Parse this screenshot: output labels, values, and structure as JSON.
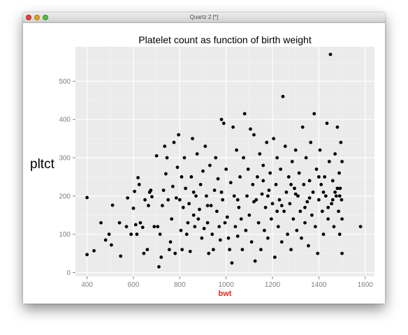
{
  "window": {
    "title": "Quartz 2 [*]"
  },
  "chart_data": {
    "type": "scatter",
    "title": "Platelet count as function of birth weight",
    "xlabel": "bwt",
    "ylabel": "pltct",
    "xlim": [
      350,
      1640
    ],
    "ylim": [
      -10,
      590
    ],
    "xticks": [
      400,
      600,
      800,
      1000,
      1200,
      1400,
      1600
    ],
    "yticks": [
      0,
      100,
      200,
      300,
      400,
      500
    ],
    "grid": true,
    "colors": {
      "panel": "#ebebeb",
      "grid": "#ffffff",
      "points": "#000000",
      "xlabel": "#e8271a"
    },
    "points": [
      [
        400,
        196
      ],
      [
        400,
        47
      ],
      [
        430,
        57
      ],
      [
        460,
        130
      ],
      [
        480,
        85
      ],
      [
        495,
        100
      ],
      [
        505,
        72
      ],
      [
        510,
        176
      ],
      [
        540,
        130
      ],
      [
        545,
        43
      ],
      [
        570,
        120
      ],
      [
        575,
        195
      ],
      [
        590,
        100
      ],
      [
        600,
        168
      ],
      [
        605,
        212
      ],
      [
        610,
        125
      ],
      [
        615,
        100
      ],
      [
        620,
        248
      ],
      [
        625,
        230
      ],
      [
        630,
        130
      ],
      [
        640,
        118
      ],
      [
        645,
        50
      ],
      [
        650,
        190
      ],
      [
        660,
        60
      ],
      [
        665,
        175
      ],
      [
        670,
        210
      ],
      [
        675,
        215
      ],
      [
        680,
        198
      ],
      [
        690,
        120
      ],
      [
        700,
        305
      ],
      [
        705,
        120
      ],
      [
        710,
        15
      ],
      [
        715,
        100
      ],
      [
        720,
        40
      ],
      [
        725,
        175
      ],
      [
        730,
        215
      ],
      [
        735,
        330
      ],
      [
        740,
        258
      ],
      [
        745,
        300
      ],
      [
        750,
        190
      ],
      [
        755,
        60
      ],
      [
        760,
        80
      ],
      [
        765,
        140
      ],
      [
        770,
        225
      ],
      [
        775,
        340
      ],
      [
        780,
        50
      ],
      [
        785,
        195
      ],
      [
        790,
        275
      ],
      [
        795,
        360
      ],
      [
        800,
        190
      ],
      [
        805,
        110
      ],
      [
        808,
        250
      ],
      [
        810,
        60
      ],
      [
        815,
        170
      ],
      [
        820,
        300
      ],
      [
        825,
        220
      ],
      [
        830,
        100
      ],
      [
        835,
        130
      ],
      [
        840,
        180
      ],
      [
        845,
        55
      ],
      [
        850,
        250
      ],
      [
        855,
        350
      ],
      [
        860,
        150
      ],
      [
        865,
        120
      ],
      [
        870,
        200
      ],
      [
        875,
        310
      ],
      [
        880,
        140
      ],
      [
        885,
        165
      ],
      [
        890,
        230
      ],
      [
        895,
        90
      ],
      [
        900,
        265
      ],
      [
        905,
        115
      ],
      [
        910,
        330
      ],
      [
        915,
        200
      ],
      [
        920,
        130
      ],
      [
        925,
        50
      ],
      [
        930,
        280
      ],
      [
        935,
        175
      ],
      [
        940,
        100
      ],
      [
        945,
        60
      ],
      [
        950,
        215
      ],
      [
        955,
        300
      ],
      [
        960,
        160
      ],
      [
        965,
        245
      ],
      [
        970,
        120
      ],
      [
        975,
        85
      ],
      [
        980,
        400
      ],
      [
        985,
        190
      ],
      [
        990,
        390
      ],
      [
        995,
        130
      ],
      [
        1000,
        270
      ],
      [
        1005,
        145
      ],
      [
        1010,
        90
      ],
      [
        1015,
        60
      ],
      [
        1020,
        235
      ],
      [
        1025,
        25
      ],
      [
        1030,
        380
      ],
      [
        1035,
        200
      ],
      [
        1040,
        120
      ],
      [
        1045,
        320
      ],
      [
        1050,
        95
      ],
      [
        1055,
        170
      ],
      [
        1060,
        250
      ],
      [
        1065,
        140
      ],
      [
        1070,
        60
      ],
      [
        1075,
        300
      ],
      [
        1080,
        415
      ],
      [
        1085,
        110
      ],
      [
        1090,
        200
      ],
      [
        1095,
        270
      ],
      [
        1100,
        150
      ],
      [
        1105,
        375
      ],
      [
        1110,
        80
      ],
      [
        1115,
        230
      ],
      [
        1120,
        360
      ],
      [
        1125,
        30
      ],
      [
        1130,
        190
      ],
      [
        1135,
        250
      ],
      [
        1140,
        130
      ],
      [
        1145,
        310
      ],
      [
        1150,
        60
      ],
      [
        1155,
        205
      ],
      [
        1160,
        280
      ],
      [
        1165,
        110
      ],
      [
        1170,
        170
      ],
      [
        1175,
        340
      ],
      [
        1180,
        90
      ],
      [
        1185,
        215
      ],
      [
        1190,
        260
      ],
      [
        1195,
        140
      ],
      [
        1200,
        180
      ],
      [
        1205,
        350
      ],
      [
        1210,
        40
      ],
      [
        1215,
        230
      ],
      [
        1220,
        300
      ],
      [
        1225,
        120
      ],
      [
        1230,
        190
      ],
      [
        1235,
        270
      ],
      [
        1240,
        80
      ],
      [
        1245,
        460
      ],
      [
        1250,
        160
      ],
      [
        1255,
        330
      ],
      [
        1260,
        210
      ],
      [
        1265,
        100
      ],
      [
        1270,
        250
      ],
      [
        1275,
        180
      ],
      [
        1280,
        60
      ],
      [
        1285,
        290
      ],
      [
        1290,
        140
      ],
      [
        1295,
        220
      ],
      [
        1300,
        320
      ],
      [
        1305,
        110
      ],
      [
        1310,
        200
      ],
      [
        1315,
        260
      ],
      [
        1320,
        160
      ],
      [
        1325,
        90
      ],
      [
        1330,
        380
      ],
      [
        1335,
        230
      ],
      [
        1340,
        130
      ],
      [
        1345,
        300
      ],
      [
        1350,
        185
      ],
      [
        1355,
        70
      ],
      [
        1360,
        240
      ],
      [
        1365,
        340
      ],
      [
        1370,
        150
      ],
      [
        1375,
        210
      ],
      [
        1380,
        415
      ],
      [
        1385,
        120
      ],
      [
        1390,
        270
      ],
      [
        1395,
        50
      ],
      [
        1400,
        190
      ],
      [
        1405,
        320
      ],
      [
        1410,
        230
      ],
      [
        1415,
        160
      ],
      [
        1420,
        100
      ],
      [
        1425,
        250
      ],
      [
        1430,
        200
      ],
      [
        1435,
        390
      ],
      [
        1440,
        140
      ],
      [
        1445,
        290
      ],
      [
        1450,
        570
      ],
      [
        1455,
        180
      ],
      [
        1460,
        240
      ],
      [
        1465,
        120
      ],
      [
        1470,
        310
      ],
      [
        1475,
        200
      ],
      [
        1480,
        380
      ],
      [
        1485,
        160
      ],
      [
        1488,
        260
      ],
      [
        1490,
        100
      ],
      [
        1492,
        220
      ],
      [
        1495,
        340
      ],
      [
        1498,
        190
      ],
      [
        1500,
        50
      ],
      [
        1500,
        290
      ],
      [
        1500,
        140
      ],
      [
        1580,
        120
      ],
      [
        1120,
        185
      ],
      [
        1180,
        200
      ],
      [
        1240,
        175
      ],
      [
        1300,
        205
      ],
      [
        1360,
        195
      ],
      [
        1420,
        210
      ],
      [
        1460,
        190
      ],
      [
        1480,
        220
      ],
      [
        1050,
        190
      ],
      [
        980,
        210
      ],
      [
        920,
        175
      ],
      [
        860,
        210
      ],
      [
        1160,
        240
      ],
      [
        1220,
        160
      ],
      [
        1280,
        230
      ],
      [
        1340,
        170
      ],
      [
        1400,
        250
      ],
      [
        1440,
        170
      ],
      [
        1470,
        210
      ],
      [
        1490,
        200
      ]
    ]
  }
}
